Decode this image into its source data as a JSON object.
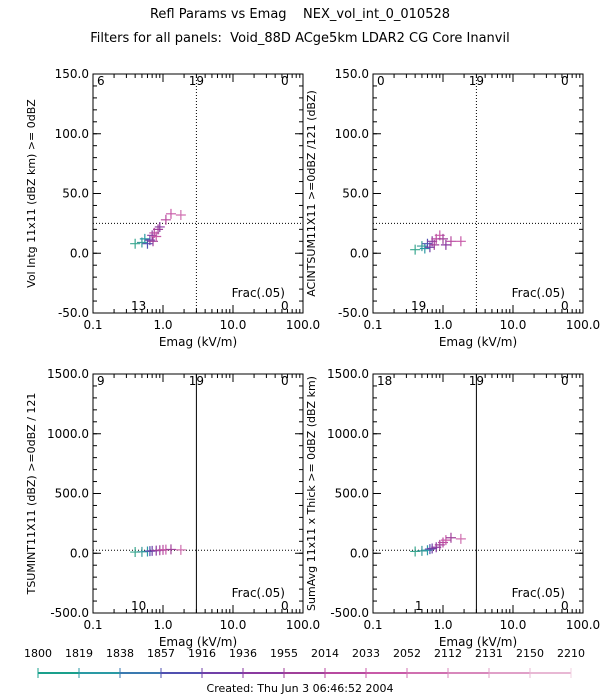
{
  "header": {
    "title": "Refl Params vs Emag    NEX_vol_int_0_010528",
    "subtitle": "Filters for all panels:  Void_88D ACge5km LDAR2 CG Core Inanvil"
  },
  "footer": {
    "created": "Created: Thu Jun  3 06:46:52 2004"
  },
  "colorbar": {
    "labels": [
      "1800",
      "1819",
      "1838",
      "1857",
      "1916",
      "1936",
      "1955",
      "2014",
      "2033",
      "2052",
      "2112",
      "2131",
      "2150",
      "2210"
    ],
    "colors": [
      "#1aa08c",
      "#2a9aa4",
      "#3a7ab0",
      "#5050b0",
      "#7040a8",
      "#8a3aa0",
      "#a0409a",
      "#b84aa0",
      "#c85aa8",
      "#d070b0",
      "#d888bc",
      "#e0a0c8",
      "#e8b8d4",
      "#f0d0e0"
    ]
  },
  "chart_data": [
    {
      "type": "scatter",
      "title": "",
      "xlabel": "Emag (kV/m)",
      "ylabel": "Vol Intg 11x11 (dBZ km) >= 0dBZ",
      "xscale": "log",
      "xlim": [
        0.1,
        100.0
      ],
      "ylim": [
        -50.0,
        150.0
      ],
      "xticks": [
        "0.1",
        "1.0",
        "10.0",
        "100.0"
      ],
      "yticks": [
        "-50.0",
        "0.0",
        "50.0",
        "100.0",
        "150.0"
      ],
      "yticks_values": [
        -50,
        0,
        50,
        100,
        150
      ],
      "threshold_x": 3.0,
      "threshold_y": 25.0,
      "threshold_x_style": "dotted",
      "quadrant_counts": {
        "top_left": "6",
        "top_mid": "19",
        "top_right": "0",
        "bottom_mid": "13",
        "bottom_right": "0"
      },
      "annotation": "Frac(.05)",
      "points": [
        {
          "x": 0.4,
          "y": 8,
          "c": "#3aa890"
        },
        {
          "x": 0.5,
          "y": 9,
          "c": "#3a9a9a"
        },
        {
          "x": 0.55,
          "y": 12,
          "c": "#2a9aa4"
        },
        {
          "x": 0.6,
          "y": 8,
          "c": "#5050b0"
        },
        {
          "x": 0.65,
          "y": 11,
          "c": "#7040a8"
        },
        {
          "x": 0.7,
          "y": 15,
          "c": "#8a3aa0"
        },
        {
          "x": 0.72,
          "y": 10,
          "c": "#a0409a"
        },
        {
          "x": 0.75,
          "y": 17,
          "c": "#b84aa0"
        },
        {
          "x": 0.8,
          "y": 14,
          "c": "#c85aa8"
        },
        {
          "x": 0.85,
          "y": 20,
          "c": "#a0409a"
        },
        {
          "x": 0.9,
          "y": 22,
          "c": "#8a3aa0"
        },
        {
          "x": 1.1,
          "y": 28,
          "c": "#b84aa0"
        },
        {
          "x": 1.3,
          "y": 33,
          "c": "#c85aa8"
        },
        {
          "x": 1.8,
          "y": 32,
          "c": "#d070b0"
        }
      ]
    },
    {
      "type": "scatter",
      "title": "",
      "xlabel": "Emag (kV/m)",
      "ylabel": "ACINTSUM11X11 >=0dBZ /121 (dBZ)",
      "xscale": "log",
      "xlim": [
        0.1,
        100.0
      ],
      "ylim": [
        -50.0,
        150.0
      ],
      "xticks": [
        "0.1",
        "1.0",
        "10.0",
        "100.0"
      ],
      "yticks": [
        "-50.0",
        "0.0",
        "50.0",
        "100.0",
        "150.0"
      ],
      "yticks_values": [
        -50,
        0,
        50,
        100,
        150
      ],
      "threshold_x": 3.0,
      "threshold_y": 25.0,
      "threshold_x_style": "dotted",
      "quadrant_counts": {
        "top_left": "0",
        "top_mid": "19",
        "top_right": "0",
        "bottom_mid": "19",
        "bottom_right": "0"
      },
      "annotation": "Frac(.05)",
      "points": [
        {
          "x": 0.4,
          "y": 3,
          "c": "#3aa890"
        },
        {
          "x": 0.5,
          "y": 6,
          "c": "#3a9a9a"
        },
        {
          "x": 0.55,
          "y": 4,
          "c": "#2a9aa4"
        },
        {
          "x": 0.6,
          "y": 8,
          "c": "#5050b0"
        },
        {
          "x": 0.65,
          "y": 5,
          "c": "#7040a8"
        },
        {
          "x": 0.7,
          "y": 10,
          "c": "#8a3aa0"
        },
        {
          "x": 0.75,
          "y": 7,
          "c": "#a0409a"
        },
        {
          "x": 0.8,
          "y": 12,
          "c": "#b84aa0"
        },
        {
          "x": 0.9,
          "y": 15,
          "c": "#c85aa8"
        },
        {
          "x": 1.0,
          "y": 12,
          "c": "#a0409a"
        },
        {
          "x": 1.1,
          "y": 7,
          "c": "#8a3aa0"
        },
        {
          "x": 1.3,
          "y": 10,
          "c": "#b84aa0"
        },
        {
          "x": 1.8,
          "y": 10,
          "c": "#c85aa8"
        }
      ]
    },
    {
      "type": "scatter",
      "title": "",
      "xlabel": "Emag (kV/m)",
      "ylabel": "TSUMINT11X11 (dBZ) >=0dBZ / 121",
      "xscale": "log",
      "xlim": [
        0.1,
        100.0
      ],
      "ylim": [
        -500.0,
        1500.0
      ],
      "xticks": [
        "0.1",
        "1.0",
        "10.0",
        "100.0"
      ],
      "yticks": [
        "-500.0",
        "0.0",
        "500.0",
        "1000.0",
        "1500.0"
      ],
      "yticks_values": [
        -500,
        0,
        500,
        1000,
        1500
      ],
      "threshold_x": 3.0,
      "threshold_y": 25.0,
      "threshold_x_style": "solid",
      "quadrant_counts": {
        "top_left": "9",
        "top_mid": "19",
        "top_right": "0",
        "bottom_mid": "10",
        "bottom_right": "0"
      },
      "annotation": "Frac(.05)",
      "points": [
        {
          "x": 0.4,
          "y": 10,
          "c": "#3aa890"
        },
        {
          "x": 0.5,
          "y": 12,
          "c": "#3a9a9a"
        },
        {
          "x": 0.6,
          "y": 15,
          "c": "#2a9aa4"
        },
        {
          "x": 0.65,
          "y": 18,
          "c": "#5050b0"
        },
        {
          "x": 0.7,
          "y": 20,
          "c": "#7040a8"
        },
        {
          "x": 0.8,
          "y": 22,
          "c": "#8a3aa0"
        },
        {
          "x": 0.9,
          "y": 25,
          "c": "#a0409a"
        },
        {
          "x": 1.0,
          "y": 28,
          "c": "#b84aa0"
        },
        {
          "x": 1.1,
          "y": 30,
          "c": "#c85aa8"
        },
        {
          "x": 1.3,
          "y": 32,
          "c": "#a0409a"
        },
        {
          "x": 1.8,
          "y": 28,
          "c": "#d070b0"
        }
      ]
    },
    {
      "type": "scatter",
      "title": "",
      "xlabel": "Emag (kV/m)",
      "ylabel": "SumAvg 11x11 x Thick >= 0dBZ (dBZ km)",
      "xscale": "log",
      "xlim": [
        0.1,
        100.0
      ],
      "ylim": [
        -500.0,
        1500.0
      ],
      "xticks": [
        "0.1",
        "1.0",
        "10.0",
        "100.0"
      ],
      "yticks": [
        "-500.0",
        "0.0",
        "500.0",
        "1000.0",
        "1500.0"
      ],
      "yticks_values": [
        -500,
        0,
        500,
        1000,
        1500
      ],
      "threshold_x": 3.0,
      "threshold_y": 25.0,
      "threshold_x_style": "solid",
      "quadrant_counts": {
        "top_left": "18",
        "top_mid": "19",
        "top_right": "0",
        "bottom_mid": "1",
        "bottom_right": "0"
      },
      "annotation": "Frac(.05)",
      "points": [
        {
          "x": 0.4,
          "y": 15,
          "c": "#3aa890"
        },
        {
          "x": 0.5,
          "y": 20,
          "c": "#3a9a9a"
        },
        {
          "x": 0.6,
          "y": 25,
          "c": "#2a9aa4"
        },
        {
          "x": 0.65,
          "y": 35,
          "c": "#5050b0"
        },
        {
          "x": 0.7,
          "y": 40,
          "c": "#7040a8"
        },
        {
          "x": 0.8,
          "y": 50,
          "c": "#8a3aa0"
        },
        {
          "x": 0.9,
          "y": 70,
          "c": "#a0409a"
        },
        {
          "x": 1.0,
          "y": 90,
          "c": "#b84aa0"
        },
        {
          "x": 1.1,
          "y": 110,
          "c": "#c85aa8"
        },
        {
          "x": 1.3,
          "y": 130,
          "c": "#a0409a"
        },
        {
          "x": 1.8,
          "y": 120,
          "c": "#d070b0"
        }
      ]
    }
  ]
}
